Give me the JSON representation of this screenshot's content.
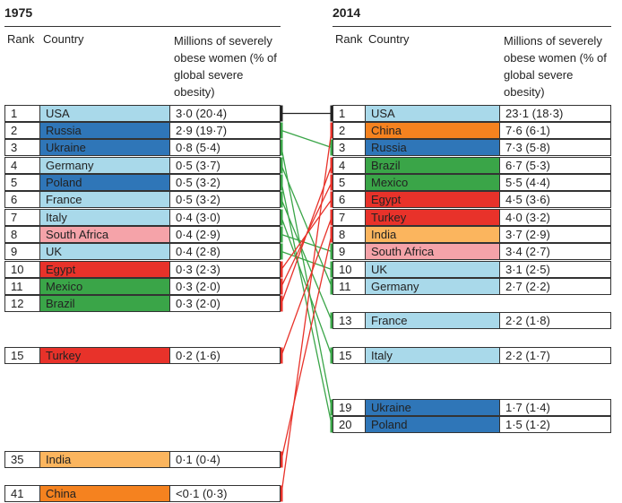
{
  "tables": [
    {
      "year": "1975",
      "headers": {
        "rank": "Rank",
        "country": "Country",
        "value": "Millions of severely obese women (% of global severe obesity)"
      },
      "rows": [
        {
          "rank": 1,
          "country": "USA",
          "value": "3·0 (20·4)",
          "color": "#a9d9ea"
        },
        {
          "rank": 2,
          "country": "Russia",
          "value": "2·9 (19·7)",
          "color": "#2f76b8"
        },
        {
          "rank": 3,
          "country": "Ukraine",
          "value": "0·8 (5·4)",
          "color": "#2f76b8"
        },
        {
          "rank": 4,
          "country": "Germany",
          "value": "0·5 (3·7)",
          "color": "#a9d9ea"
        },
        {
          "rank": 5,
          "country": "Poland",
          "value": "0·5 (3·2)",
          "color": "#2f76b8"
        },
        {
          "rank": 6,
          "country": "France",
          "value": "0·5 (3·2)",
          "color": "#a9d9ea"
        },
        {
          "rank": 7,
          "country": "Italy",
          "value": "0·4 (3·0)",
          "color": "#a9d9ea"
        },
        {
          "rank": 8,
          "country": "South Africa",
          "value": "0·4 (2·9)",
          "color": "#f5a3a9"
        },
        {
          "rank": 9,
          "country": "UK",
          "value": "0·4 (2·8)",
          "color": "#a9d9ea"
        },
        {
          "rank": 10,
          "country": "Egypt",
          "value": "0·3 (2·3)",
          "color": "#e8322a"
        },
        {
          "rank": 11,
          "country": "Mexico",
          "value": "0·3 (2·0)",
          "color": "#3aa548"
        },
        {
          "rank": 12,
          "country": "Brazil",
          "value": "0·3 (2·0)",
          "color": "#3aa548"
        },
        {
          "rank": 15,
          "country": "Turkey",
          "value": "0·2 (1·6)",
          "color": "#e8322a"
        },
        {
          "rank": 35,
          "country": "India",
          "value": "0·1 (0·4)",
          "color": "#fbb55e"
        },
        {
          "rank": 41,
          "country": "China",
          "value": "<0·1 (0·3)",
          "color": "#f5821f"
        }
      ]
    },
    {
      "year": "2014",
      "headers": {
        "rank": "Rank",
        "country": "Country",
        "value": "Millions of severely obese women (% of global severe obesity)"
      },
      "rows": [
        {
          "rank": 1,
          "country": "USA",
          "value": "23·1 (18·3)",
          "color": "#a9d9ea"
        },
        {
          "rank": 2,
          "country": "China",
          "value": "7·6 (6·1)",
          "color": "#f5821f"
        },
        {
          "rank": 3,
          "country": "Russia",
          "value": "7·3 (5·8)",
          "color": "#2f76b8"
        },
        {
          "rank": 4,
          "country": "Brazil",
          "value": "6·7 (5·3)",
          "color": "#3aa548"
        },
        {
          "rank": 5,
          "country": "Mexico",
          "value": "5·5 (4·4)",
          "color": "#3aa548"
        },
        {
          "rank": 6,
          "country": "Egypt",
          "value": "4·5 (3·6)",
          "color": "#e8322a"
        },
        {
          "rank": 7,
          "country": "Turkey",
          "value": "4·0 (3·2)",
          "color": "#e8322a"
        },
        {
          "rank": 8,
          "country": "India",
          "value": "3·7 (2·9)",
          "color": "#fbb55e"
        },
        {
          "rank": 9,
          "country": "South Africa",
          "value": "3·4 (2·7)",
          "color": "#f5a3a9"
        },
        {
          "rank": 10,
          "country": "UK",
          "value": "3·1 (2·5)",
          "color": "#a9d9ea"
        },
        {
          "rank": 11,
          "country": "Germany",
          "value": "2·7 (2·2)",
          "color": "#a9d9ea"
        },
        {
          "rank": 13,
          "country": "France",
          "value": "2·2 (1·8)",
          "color": "#a9d9ea"
        },
        {
          "rank": 15,
          "country": "Italy",
          "value": "2·2 (1·7)",
          "color": "#a9d9ea"
        },
        {
          "rank": 19,
          "country": "Ukraine",
          "value": "1·7 (1·4)",
          "color": "#2f76b8"
        },
        {
          "rank": 20,
          "country": "Poland",
          "value": "1·5 (1·2)",
          "color": "#2f76b8"
        }
      ]
    }
  ]
}
